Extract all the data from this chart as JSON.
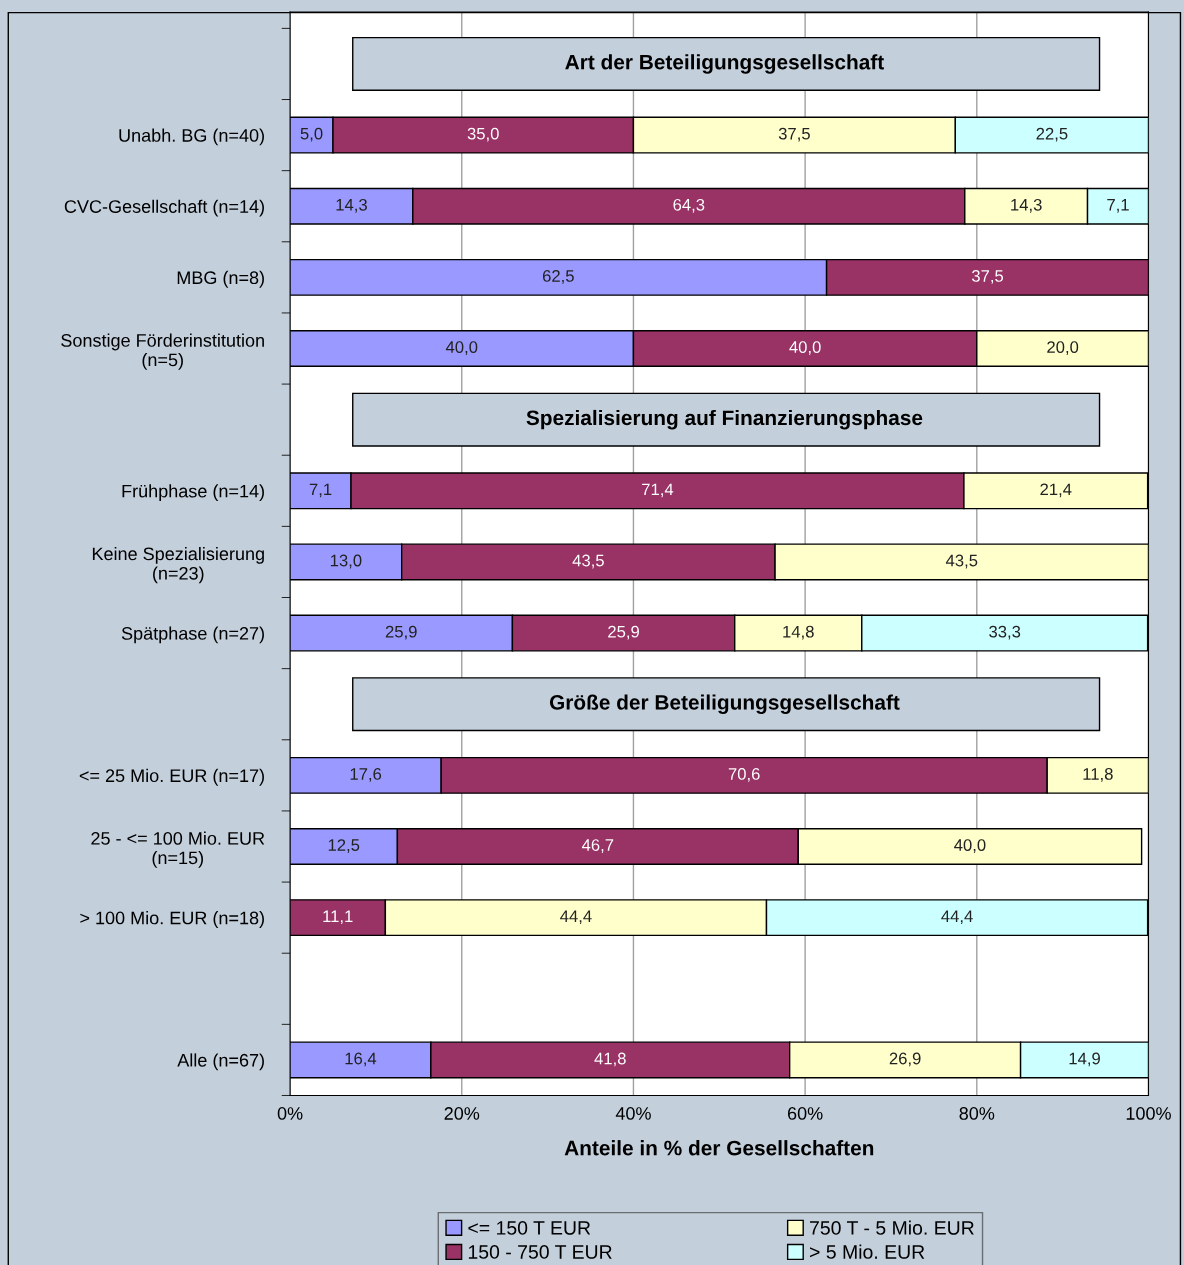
{
  "chart_data": {
    "type": "bar",
    "orientation": "horizontal",
    "stacked": true,
    "categories": [
      null,
      "Unabh. BG (n=40)",
      "CVC-Gesellschaft (n=14)",
      "MBG (n=8)",
      "Sonstige Förderinstitution\n(n=5)",
      null,
      "Frühphase (n=14)",
      "Keine Spezialisierung\n(n=23)",
      "Spätphase (n=27)",
      null,
      "<= 25 Mio. EUR (n=17)",
      "25 - <= 100 Mio. EUR\n(n=15)",
      "> 100 Mio. EUR (n=18)",
      null,
      "Alle (n=67)"
    ],
    "series": [
      {
        "name": "<= 150 T EUR",
        "color": "#9999ff",
        "values": [
          null,
          5.0,
          14.3,
          62.5,
          40.0,
          null,
          7.1,
          13.0,
          25.9,
          null,
          17.6,
          12.5,
          null,
          null,
          16.4
        ],
        "value_labels": [
          null,
          "5,0",
          "14,3",
          "62,5",
          "40,0",
          null,
          "7,1",
          "13,0",
          "25,9",
          null,
          "17,6",
          "12,5",
          null,
          null,
          "16,4"
        ]
      },
      {
        "name": "150 - 750 T EUR",
        "color": "#993366",
        "values": [
          null,
          35.0,
          64.3,
          37.5,
          40.0,
          null,
          71.4,
          43.5,
          25.9,
          null,
          70.6,
          46.7,
          11.1,
          null,
          41.8
        ],
        "value_labels": [
          null,
          "35,0",
          "64,3",
          "37,5",
          "40,0",
          null,
          "71,4",
          "43,5",
          "25,9",
          null,
          "70,6",
          "46,7",
          "11,1",
          null,
          "41,8"
        ]
      },
      {
        "name": "750 T - 5 Mio. EUR",
        "color": "#ffffcc",
        "values": [
          null,
          37.5,
          14.3,
          null,
          20.0,
          null,
          21.4,
          43.5,
          14.8,
          null,
          11.8,
          40.0,
          44.4,
          null,
          26.9
        ],
        "value_labels": [
          null,
          "37,5",
          "14,3",
          null,
          "20,0",
          null,
          "21,4",
          "43,5",
          "14,8",
          null,
          "11,8",
          "40,0",
          "44,4",
          null,
          "26,9"
        ]
      },
      {
        "name": "> 5 Mio. EUR",
        "color": "#ccffff",
        "values": [
          null,
          22.5,
          7.1,
          null,
          null,
          null,
          null,
          null,
          33.3,
          null,
          null,
          null,
          44.4,
          null,
          14.9
        ],
        "value_labels": [
          null,
          "22,5",
          "7,1",
          null,
          null,
          null,
          null,
          null,
          "33,3",
          null,
          null,
          null,
          "44,4",
          null,
          "14,9"
        ]
      }
    ],
    "xlim": [
      0,
      100
    ],
    "xticks": [
      {
        "value": 0,
        "label": "0%"
      },
      {
        "value": 20,
        "label": "20%"
      },
      {
        "value": 40,
        "label": "40%"
      },
      {
        "value": 60,
        "label": "60%"
      },
      {
        "value": 80,
        "label": "80%"
      },
      {
        "value": 100,
        "label": "100%"
      }
    ],
    "xlabel": "Anteile in % der Gesellschaften",
    "annotations": [
      "Art der Beteiligungsgesellschaft",
      "Spezialisierung auf Finanzierungsphase",
      "Größe der Beteiligungsgesellschaft"
    ],
    "grid": "x",
    "legend": "bottom"
  }
}
